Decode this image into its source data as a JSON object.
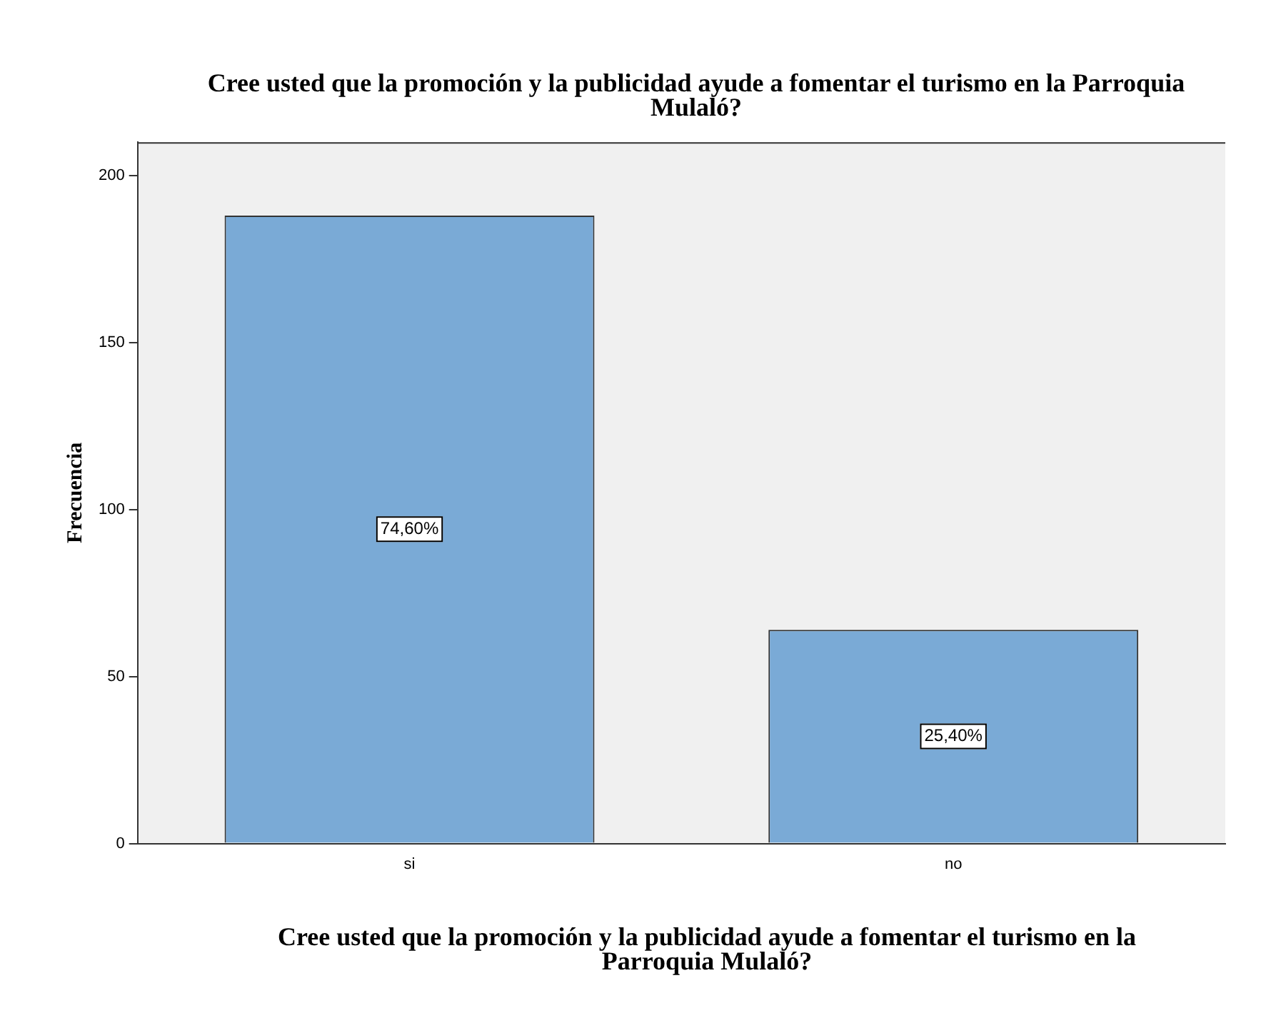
{
  "chart_data": {
    "type": "bar",
    "title": "Cree usted que la promoción y la publicidad ayude a fomentar el turismo en la Parroquia Mulaló?",
    "xlabel": "Cree usted que la promoción y la publicidad ayude a fomentar el turismo en la Parroquia Mulaló?",
    "ylabel": "Frecuencia",
    "categories": [
      "si",
      "no"
    ],
    "values": [
      188,
      64
    ],
    "annotations": [
      "74,60%",
      "25,40%"
    ],
    "color": "#7aaad6",
    "ylim": [
      0,
      210
    ],
    "yticks": [
      0,
      50,
      100,
      150,
      200
    ],
    "grid": false
  }
}
